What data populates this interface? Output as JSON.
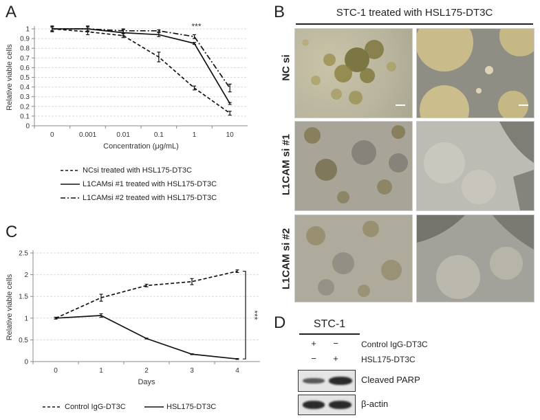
{
  "panel_labels": {
    "a": "A",
    "b": "B",
    "c": "C",
    "d": "D"
  },
  "chart_data": [
    {
      "type": "line",
      "panel": "A",
      "title": "",
      "xlabel": "Concentration (μg/mL)",
      "ylabel": "Relative viable cells",
      "categories": [
        "0",
        "0.001",
        "0.01",
        "0.1",
        "1",
        "10"
      ],
      "yticks": [
        "0",
        "0.1",
        "0.2",
        "0.3",
        "0.4",
        "0.5",
        "0.6",
        "0.7",
        "0.8",
        "0.9",
        "1"
      ],
      "ylim": [
        0,
        1
      ],
      "grid": true,
      "annotation": "***",
      "series": [
        {
          "name": "NCsi treated with HSL175-DT3C",
          "style": "dashed",
          "values": [
            1.0,
            0.97,
            0.93,
            0.71,
            0.39,
            0.13
          ],
          "errors": [
            0.03,
            0.03,
            0.02,
            0.05,
            0.02,
            0.02
          ]
        },
        {
          "name": "L1CAMsi #1 treated with HSL175-DT3C",
          "style": "solid",
          "values": [
            1.0,
            1.0,
            0.96,
            0.94,
            0.85,
            0.23
          ],
          "errors": [
            0.02,
            0.02,
            0.03,
            0.02,
            0.01,
            0.01
          ]
        },
        {
          "name": "L1CAMsi #2 treated with HSL175-DT3C",
          "style": "dashdot",
          "values": [
            1.0,
            1.0,
            0.98,
            0.98,
            0.92,
            0.39
          ],
          "errors": [
            0.02,
            0.03,
            0.02,
            0.01,
            0.02,
            0.04
          ]
        }
      ]
    },
    {
      "type": "line",
      "panel": "C",
      "title": "",
      "xlabel": "Days",
      "ylabel": "Relative viable cells",
      "categories": [
        "0",
        "1",
        "2",
        "3",
        "4"
      ],
      "yticks": [
        "0",
        "0.5",
        "1",
        "1.5",
        "2",
        "2.5"
      ],
      "ylim": [
        0,
        2.5
      ],
      "grid": true,
      "annotation": "***",
      "series": [
        {
          "name": "Control IgG-DT3C",
          "style": "dashed",
          "values": [
            1.0,
            1.47,
            1.75,
            1.84,
            2.08
          ],
          "errors": [
            0.02,
            0.08,
            0.03,
            0.07,
            0.03
          ]
        },
        {
          "name": "HSL175-DT3C",
          "style": "solid",
          "values": [
            1.0,
            1.06,
            0.53,
            0.17,
            0.06
          ],
          "errors": [
            0.02,
            0.04,
            0.01,
            0.01,
            0.01
          ]
        }
      ]
    }
  ],
  "panel_b": {
    "header": "STC-1 treated with HSL175-DT3C",
    "rows": [
      "NC si",
      "L1CAM si #1",
      "L1CAM si #2"
    ]
  },
  "panel_d": {
    "header": "STC-1",
    "lane_marks": [
      [
        "+",
        "−"
      ],
      [
        "−",
        "+"
      ]
    ],
    "row_labels": [
      "Control IgG-DT3C",
      "HSL175-DT3C"
    ],
    "blot_labels": [
      "Cleaved PARP",
      "β-actin"
    ]
  },
  "colors": {
    "line": "#111111",
    "grid": "#d9d9d9",
    "axis": "#888888"
  }
}
